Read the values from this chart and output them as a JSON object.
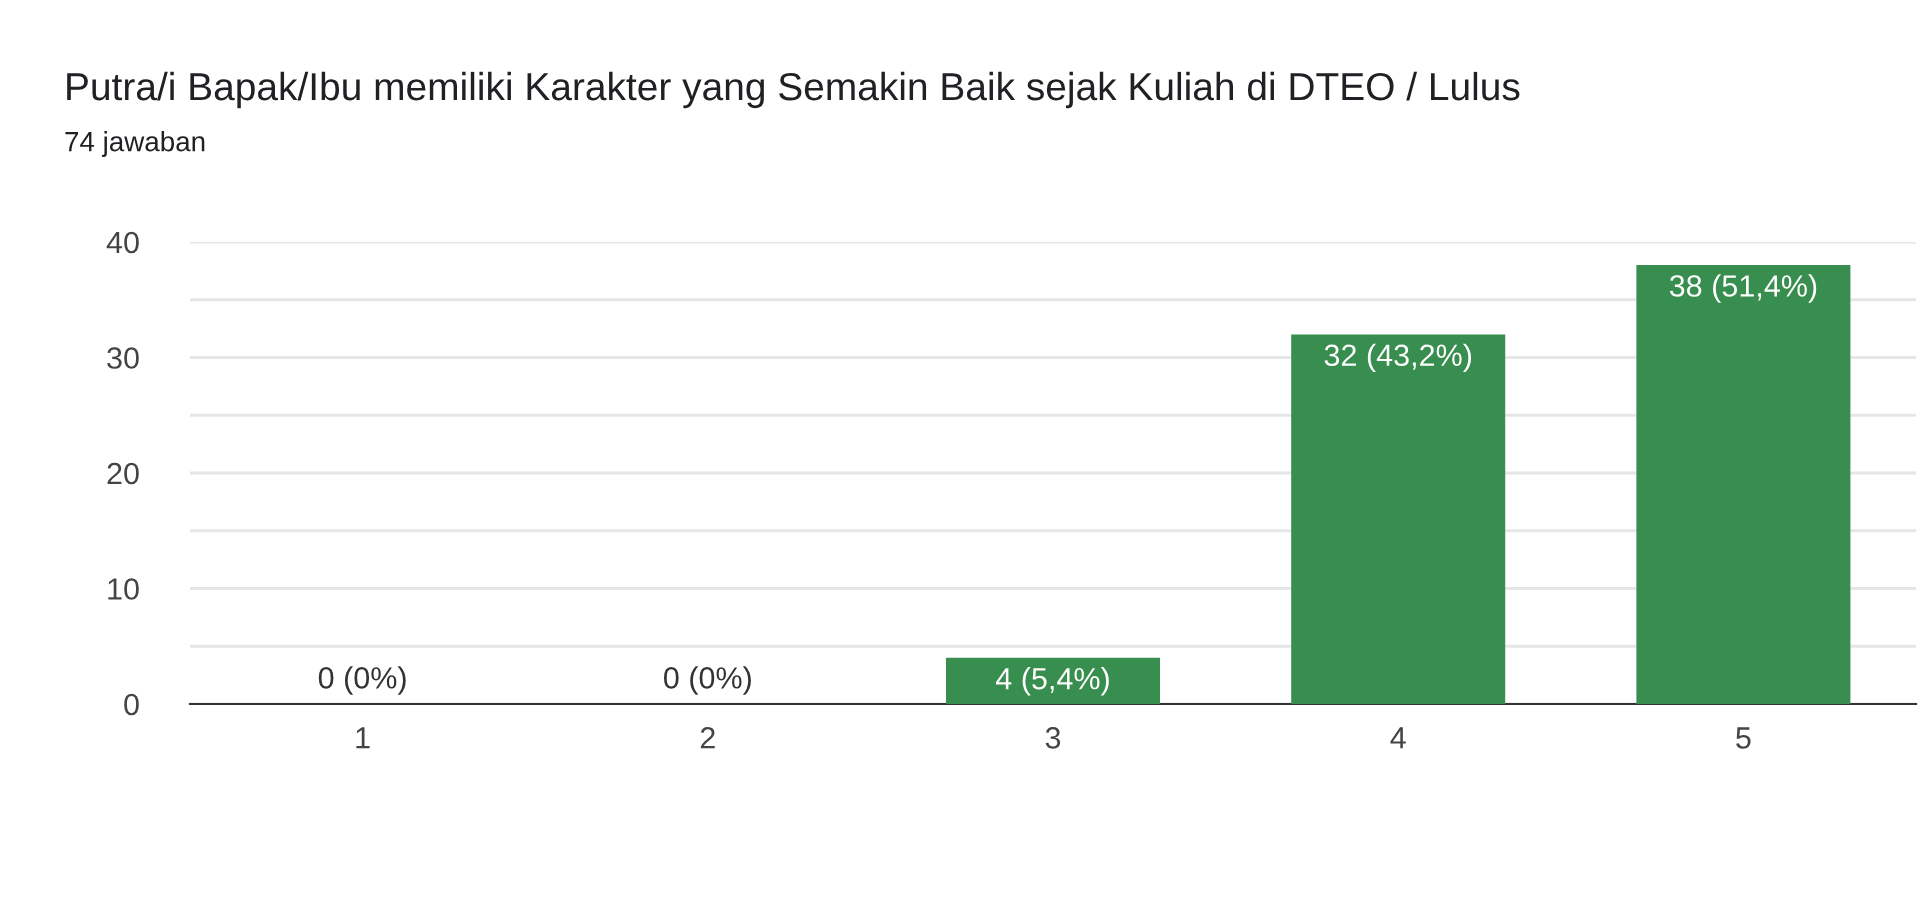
{
  "chart_data": {
    "type": "bar",
    "title": "Putra/i Bapak/Ibu memiliki Karakter yang Semakin Baik sejak Kuliah di DTEO / Lulus",
    "subtitle": "74 jawaban",
    "categories": [
      "1",
      "2",
      "3",
      "4",
      "5"
    ],
    "values": [
      0,
      0,
      4,
      32,
      38
    ],
    "value_labels": [
      "0 (0%)",
      "0 (0%)",
      "4 (5,4%)",
      "32 (43,2%)",
      "38 (51,4%)"
    ],
    "color": "#388e4f",
    "ylim": [
      0,
      40
    ],
    "yticks": [
      0,
      {
        "value": 5,
        "label": null
      },
      10,
      {
        "value": 15,
        "label": null
      },
      20,
      {
        "value": 25,
        "label": null
      },
      30,
      {
        "value": 35,
        "label": null
      },
      40
    ],
    "grid": "y"
  }
}
